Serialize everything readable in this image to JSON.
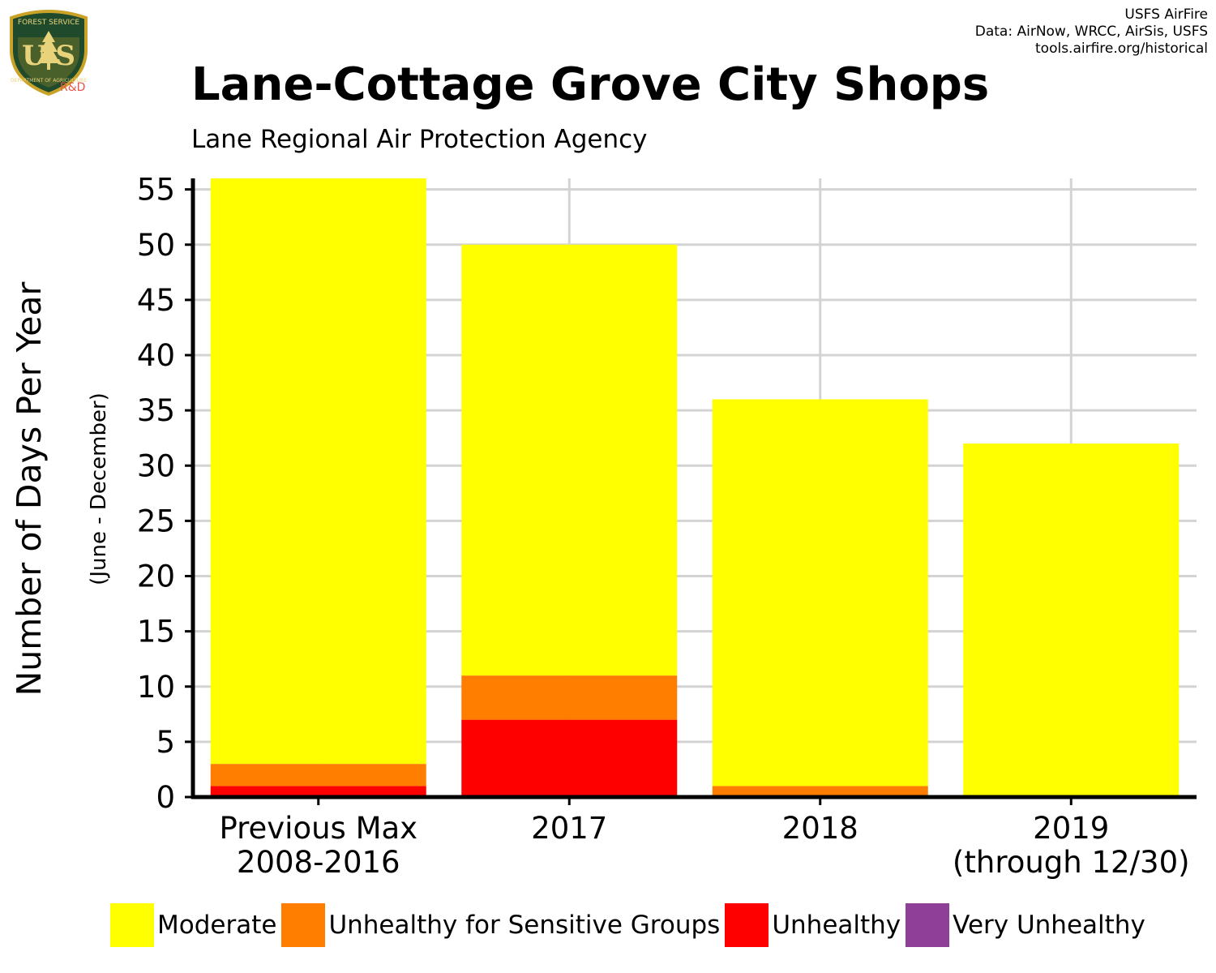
{
  "logo": {
    "top_text": "FOREST SERVICE",
    "initials": "USFS",
    "bottom_text": "DEPARTMENT OF AGRICULTURE",
    "badge": "R&D"
  },
  "credits": {
    "line1": "USFS AirFire",
    "line2": "Data: AirNow, WRCC, AirSis, USFS",
    "line3": "tools.airfire.org/historical"
  },
  "chart_data": {
    "type": "bar",
    "stacked": true,
    "title": "Lane-Cottage Grove City Shops",
    "subtitle": "Lane Regional Air Protection Agency",
    "ylabel": "Number of Days Per Year",
    "ylabel_sub": "(June - December)",
    "xlabel": "",
    "ylim": [
      0,
      56
    ],
    "yticks": [
      0,
      5,
      10,
      15,
      20,
      25,
      30,
      35,
      40,
      45,
      50,
      55
    ],
    "grid": true,
    "categories": [
      [
        "Previous Max",
        "2008-2016"
      ],
      [
        "2017"
      ],
      [
        "2018"
      ],
      [
        "2019",
        "(through 12/30)"
      ]
    ],
    "series": [
      {
        "name": "Unhealthy",
        "color": "#FF0000",
        "values": [
          1,
          7,
          0,
          0
        ]
      },
      {
        "name": "Unhealthy for Sensitive Groups",
        "color": "#FF7E00",
        "values": [
          2,
          4,
          1,
          0
        ]
      },
      {
        "name": "Moderate",
        "color": "#FFFF00",
        "values": [
          53,
          39,
          35,
          32
        ]
      },
      {
        "name": "Very Unhealthy",
        "color": "#8F3F97",
        "values": [
          0,
          0,
          0,
          0
        ]
      }
    ],
    "legend_position": "bottom",
    "legend": [
      {
        "name": "Moderate",
        "color": "#FFFF00"
      },
      {
        "name": "Unhealthy for Sensitive Groups",
        "color": "#FF7E00"
      },
      {
        "name": "Unhealthy",
        "color": "#FF0000"
      },
      {
        "name": "Very Unhealthy",
        "color": "#8F3F97"
      }
    ]
  }
}
